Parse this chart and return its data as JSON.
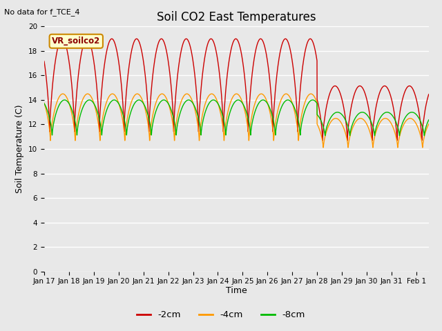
{
  "title": "Soil CO2 East Temperatures",
  "no_data_text": "No data for f_TCE_4",
  "ylabel": "Soil Temperature (C)",
  "xlabel": "Time",
  "sensor_label": "VR_soilco2",
  "ylim": [
    0,
    20
  ],
  "colors": {
    "-2cm": "#cc0000",
    "-4cm": "#ff9900",
    "-8cm": "#00bb00"
  },
  "legend_labels": [
    "-2cm",
    "-4cm",
    "-8cm"
  ],
  "xtick_labels": [
    "Jan 17",
    "Jan 18",
    "Jan 19",
    "Jan 20",
    "Jan 21",
    "Jan 22",
    "Jan 23",
    "Jan 24",
    "Jan 25",
    "Jan 26",
    "Jan 27",
    "Jan 28",
    "Jan 29",
    "Jan 30",
    "Jan 31",
    "Feb 1"
  ],
  "background_color": "#e8e8e8",
  "axes_bg_color": "#e8e8e8",
  "grid_color": "#ffffff",
  "title_fontsize": 12,
  "label_fontsize": 9,
  "tick_fontsize": 7.5
}
